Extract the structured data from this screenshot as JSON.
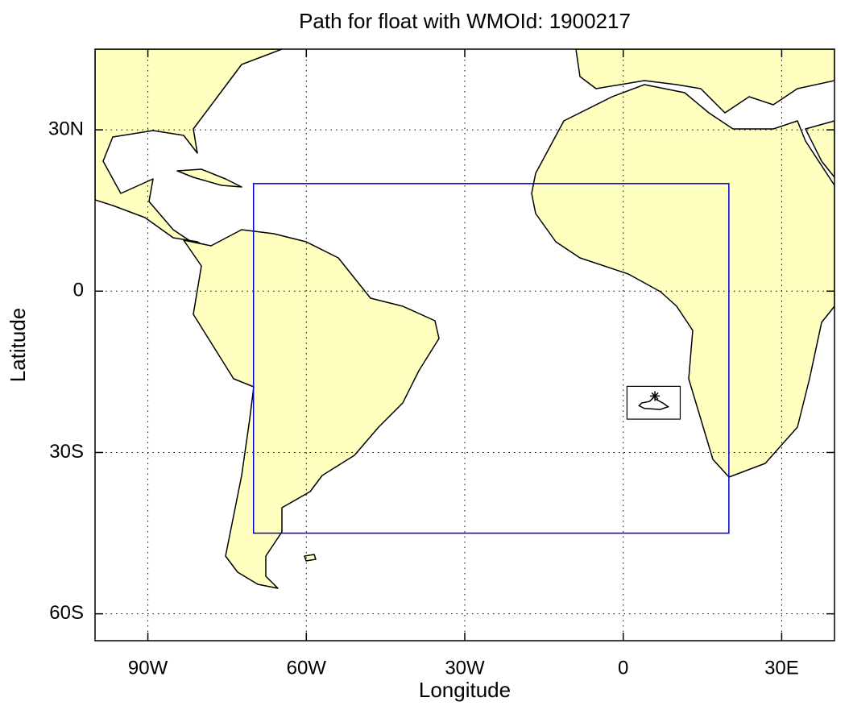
{
  "chart_data": {
    "type": "map",
    "title": "Path for float with WMOId: 1900217",
    "xlabel": "Longitude",
    "ylabel": "Latitude",
    "xlim": [
      -100,
      40
    ],
    "ylim": [
      -65,
      45
    ],
    "xticks": [
      {
        "value": -90,
        "label": "90W"
      },
      {
        "value": -60,
        "label": "60W"
      },
      {
        "value": -30,
        "label": "30W"
      },
      0,
      {
        "value": 30,
        "label": "30E"
      }
    ],
    "yticks": [
      {
        "value": -60,
        "label": "60S"
      },
      {
        "value": -30,
        "label": "30S"
      },
      0,
      {
        "value": 30,
        "label": "30N"
      }
    ],
    "grid": true,
    "region": {
      "lon": [
        -70,
        20
      ],
      "lat": [
        -45,
        20
      ],
      "color": "#0000cc"
    },
    "track": {
      "lon": [
        6,
        5,
        3.5,
        3,
        4,
        7,
        8.5,
        7.5,
        6
      ],
      "lat": [
        -19.5,
        -20.5,
        -20.8,
        -21.3,
        -21.8,
        -22,
        -21.5,
        -20.8,
        -20
      ],
      "color": "#000000"
    }
  }
}
